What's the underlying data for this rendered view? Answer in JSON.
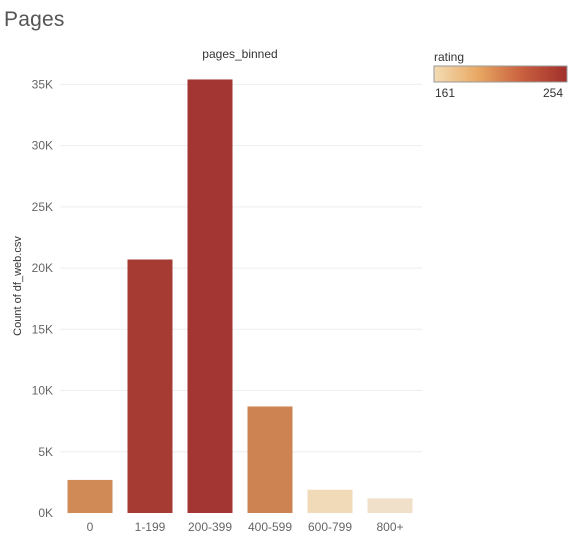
{
  "page": {
    "title": "Pages"
  },
  "legend": {
    "title": "rating",
    "min_label": "161",
    "max_label": "254",
    "gradient_colors": [
      "#f3dcb4",
      "#e8a863",
      "#c9603f",
      "#a1302c"
    ]
  },
  "chart_data": {
    "type": "bar",
    "title": "pages_binned",
    "xlabel": "",
    "ylabel": "Count of df_web.csv",
    "categories": [
      "0",
      "1-199",
      "200-399",
      "400-599",
      "600-799",
      "800+"
    ],
    "values": [
      2700,
      20700,
      35400,
      8700,
      1900,
      1200
    ],
    "ratings": [
      205,
      247,
      252,
      207,
      168,
      164
    ],
    "ylim": [
      0,
      36500
    ],
    "yticks": [
      0,
      5000,
      10000,
      15000,
      20000,
      25000,
      30000,
      35000
    ],
    "ytick_labels": [
      "0K",
      "5K",
      "10K",
      "15K",
      "20K",
      "25K",
      "30K",
      "35K"
    ],
    "bar_colors": [
      "#d08a56",
      "#a53b32",
      "#a33632",
      "#cd8452",
      "#f0dab8",
      "#f1e0c9"
    ],
    "grid": true,
    "legend_placement": "top-right"
  }
}
